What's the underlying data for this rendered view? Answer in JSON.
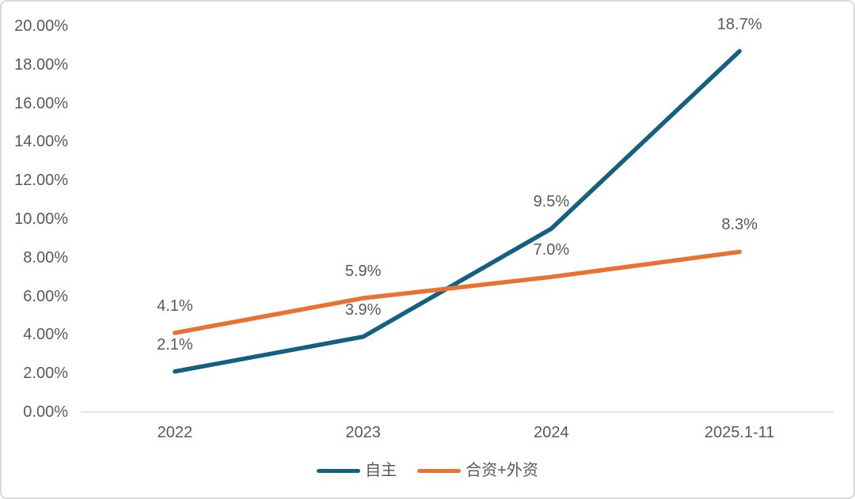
{
  "chart_data": {
    "type": "line",
    "categories": [
      "2022",
      "2023",
      "2024",
      "2025.1-11"
    ],
    "series": [
      {
        "name": "自主",
        "color": "#156082",
        "values": [
          2.1,
          3.9,
          9.5,
          18.7
        ],
        "point_labels": [
          "2.1%",
          "3.9%",
          "9.5%",
          "18.7%"
        ]
      },
      {
        "name": "合资+外资",
        "color": "#E97132",
        "values": [
          4.1,
          5.9,
          7.0,
          8.3
        ],
        "point_labels": [
          "4.1%",
          "5.9%",
          "7.0%",
          "8.3%"
        ]
      }
    ],
    "y_axis": {
      "min": 0,
      "max": 20,
      "step": 2,
      "tick_labels": [
        "0.00%",
        "2.00%",
        "4.00%",
        "6.00%",
        "8.00%",
        "10.00%",
        "12.00%",
        "14.00%",
        "16.00%",
        "18.00%",
        "20.00%"
      ]
    },
    "xlabel": "",
    "ylabel": "",
    "grid": false,
    "legend_position": "bottom"
  },
  "style": {
    "axis_text_color": "#595959",
    "data_label_color": "#595959",
    "axis_line_color": "#D9D9D9",
    "border_color": "#D9D9D9",
    "background": "#FFFFFF"
  }
}
